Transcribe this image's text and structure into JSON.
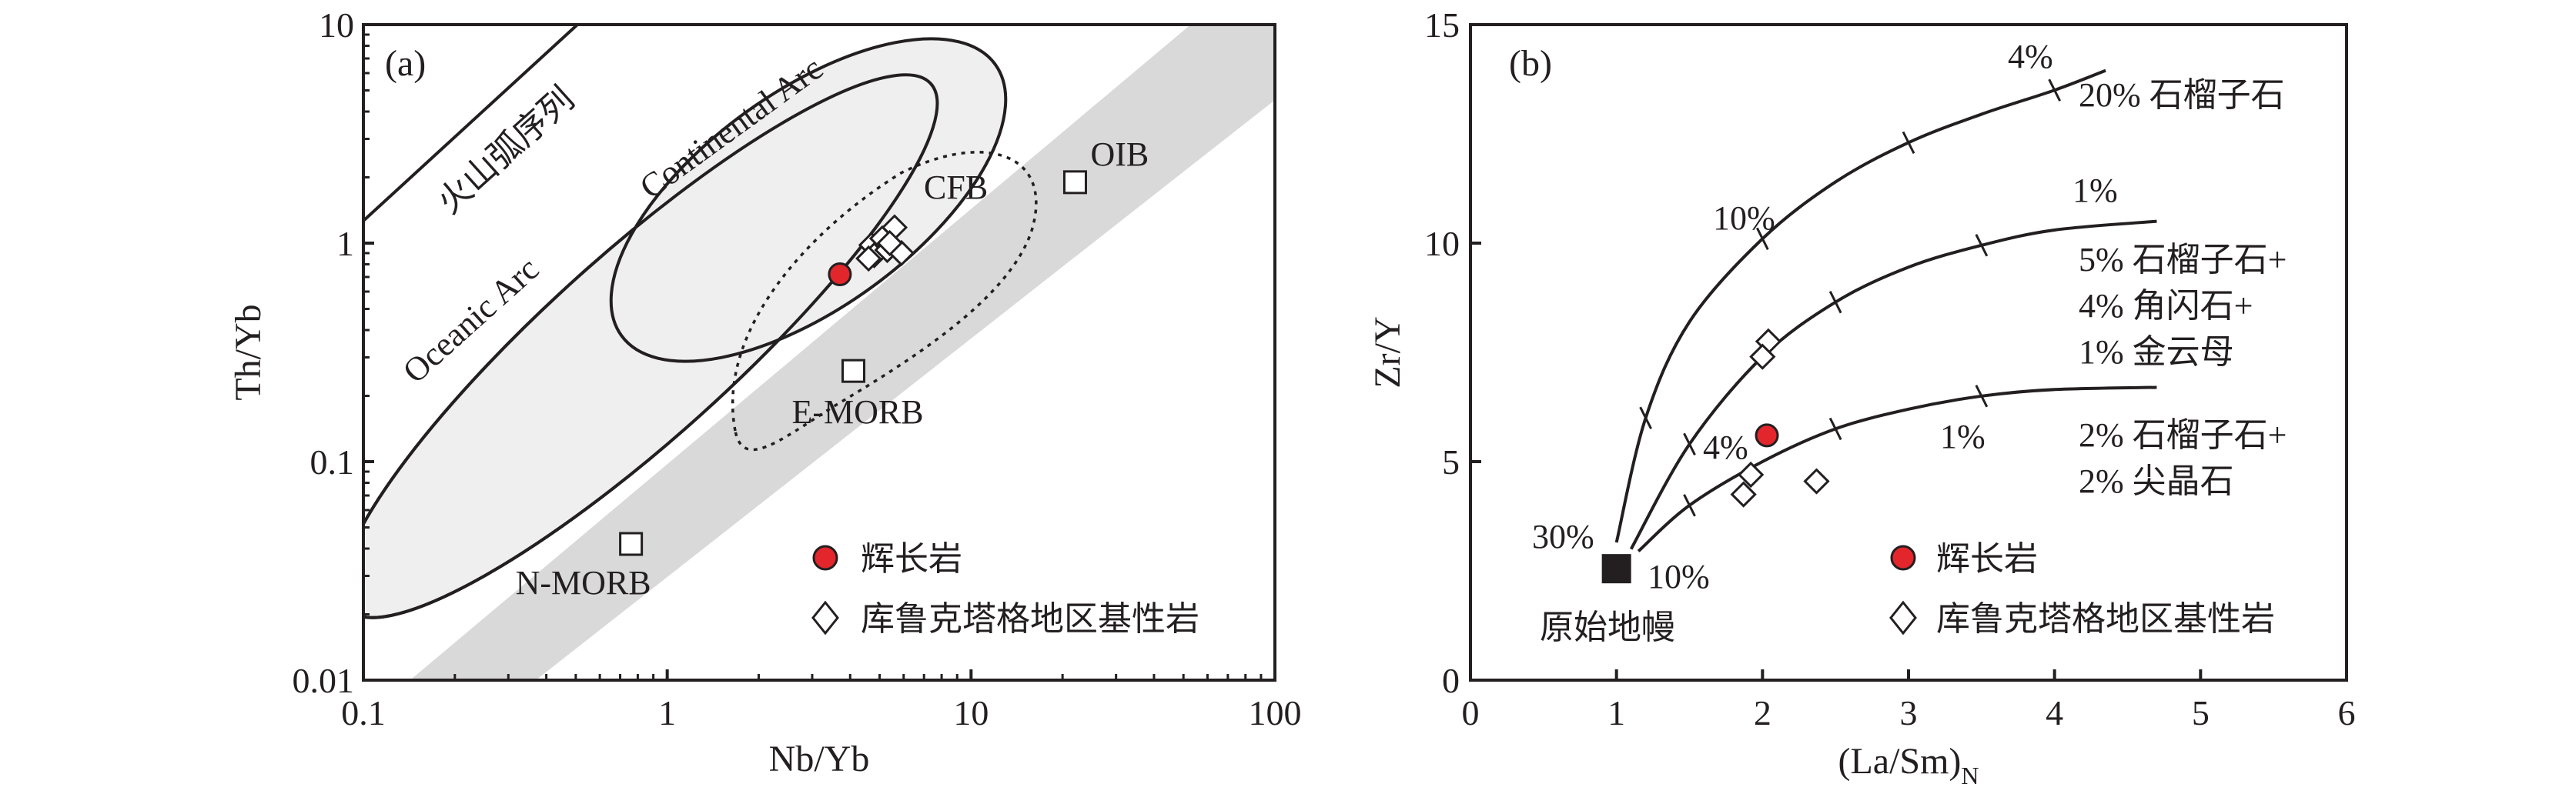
{
  "chart_data": [
    {
      "panel_label": "(a)",
      "type": "scatter",
      "xlabel": "Nb/Yb",
      "ylabel": "Th/Yb",
      "xscale": "log",
      "yscale": "log",
      "xlim": [
        0.1,
        100
      ],
      "ylim": [
        0.01,
        10
      ],
      "x_ticks": [
        "0.1",
        "1",
        "10",
        "100"
      ],
      "y_ticks": [
        "0.01",
        "0.1",
        "1",
        "10"
      ],
      "fields": {
        "volcanic_series": "火山弧序列",
        "oceanic_arc": "Oceanic Arc",
        "continental_arc": "Continental Arc",
        "cfb": "CFB",
        "array_band": "MORB-OIB array"
      },
      "reference_points": [
        {
          "label": "N-MORB",
          "x": 0.76,
          "y": 0.042
        },
        {
          "label": "E-MORB",
          "x": 4.1,
          "y": 0.26
        },
        {
          "label": "OIB",
          "x": 22,
          "y": 1.9
        }
      ],
      "series": [
        {
          "name": "辉长岩",
          "marker": "circle",
          "color": "#e3262b",
          "points": [
            [
              3.7,
              0.72
            ]
          ]
        },
        {
          "name": "库鲁克塔格地区基性岩",
          "marker": "diamond",
          "color": "#ffffff",
          "points": [
            [
              4.7,
              0.98
            ],
            [
              5.1,
              1.05
            ],
            [
              5.6,
              1.18
            ],
            [
              4.8,
              0.88
            ],
            [
              5.3,
              0.93
            ],
            [
              5.9,
              0.9
            ],
            [
              4.6,
              0.85
            ],
            [
              5.4,
              1.0
            ]
          ]
        }
      ],
      "legend_position": "bottom-right"
    },
    {
      "panel_label": "(b)",
      "type": "line",
      "xlabel": "(La/Sm)",
      "xlabel_sub": "N",
      "ylabel": "Zr/Y",
      "xlim": [
        0,
        6
      ],
      "ylim": [
        0,
        15
      ],
      "x_ticks": [
        "0",
        "1",
        "2",
        "3",
        "4",
        "5",
        "6"
      ],
      "y_ticks": [
        "0",
        "5",
        "10",
        "15"
      ],
      "source_label": "原始地幔",
      "source_point": [
        1.0,
        2.55
      ],
      "melting_curves": [
        {
          "name": "20% 石榴子石",
          "points": [
            [
              1.0,
              3.15
            ],
            [
              1.2,
              6.0
            ],
            [
              1.5,
              8.2
            ],
            [
              2.0,
              10.1
            ],
            [
              2.5,
              11.4
            ],
            [
              3.0,
              12.3
            ],
            [
              3.5,
              12.95
            ],
            [
              4.0,
              13.5
            ],
            [
              4.35,
              13.95
            ]
          ]
        },
        {
          "name": "5% 石榴子石+ 4% 角闪石+ 1% 金云母",
          "points": [
            [
              1.1,
              3.0
            ],
            [
              1.5,
              5.4
            ],
            [
              2.0,
              7.4
            ],
            [
              2.5,
              8.65
            ],
            [
              3.0,
              9.45
            ],
            [
              3.5,
              9.95
            ],
            [
              4.0,
              10.3
            ],
            [
              4.7,
              10.5
            ]
          ]
        },
        {
          "name": "2% 石榴子石+ 2% 尖晶石",
          "points": [
            [
              1.15,
              2.95
            ],
            [
              1.5,
              4.0
            ],
            [
              2.0,
              5.0
            ],
            [
              2.5,
              5.75
            ],
            [
              3.0,
              6.2
            ],
            [
              3.5,
              6.5
            ],
            [
              4.0,
              6.65
            ],
            [
              4.7,
              6.7
            ]
          ]
        }
      ],
      "curve_labels": [
        {
          "text": "20% 石榴子石"
        },
        {
          "text": "5% 石榴子石+"
        },
        {
          "text": "4% 角闪石+"
        },
        {
          "text": "1% 金云母"
        },
        {
          "text": "2% 石榴子石+"
        },
        {
          "text": "2% 尖晶石"
        }
      ],
      "melt_labels": [
        "4%",
        "10%",
        "1%",
        "4%",
        "1%",
        "30%",
        "10%"
      ],
      "series": [
        {
          "name": "辉长岩",
          "marker": "circle",
          "color": "#e3262b",
          "points": [
            [
              2.03,
              5.6
            ]
          ]
        },
        {
          "name": "库鲁克塔格地区基性岩",
          "marker": "diamond",
          "color": "#ffffff",
          "points": [
            [
              2.04,
              7.75
            ],
            [
              2.0,
              7.4
            ],
            [
              1.92,
              4.7
            ],
            [
              1.87,
              4.25
            ],
            [
              2.37,
              4.55
            ]
          ]
        }
      ],
      "legend_position": "bottom-right"
    }
  ]
}
